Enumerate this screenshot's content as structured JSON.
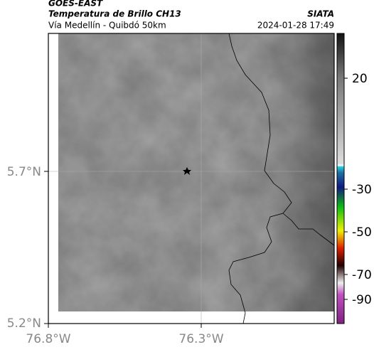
{
  "header": {
    "source": "GOES-EAST",
    "product": "Temperatura de Brillo CH13",
    "region": "Vía Medellín - Quibdó 50km",
    "agency": "SIATA",
    "timestamp": "2024-01-28 17:49"
  },
  "map": {
    "lat_labels": [
      "5.7°N",
      "5.2°N"
    ],
    "lon_labels": [
      "76.8°W",
      "76.3°W"
    ]
  },
  "colorbar": {
    "labels": [
      "20",
      "-30",
      "-50",
      "-70",
      "-90"
    ]
  }
}
